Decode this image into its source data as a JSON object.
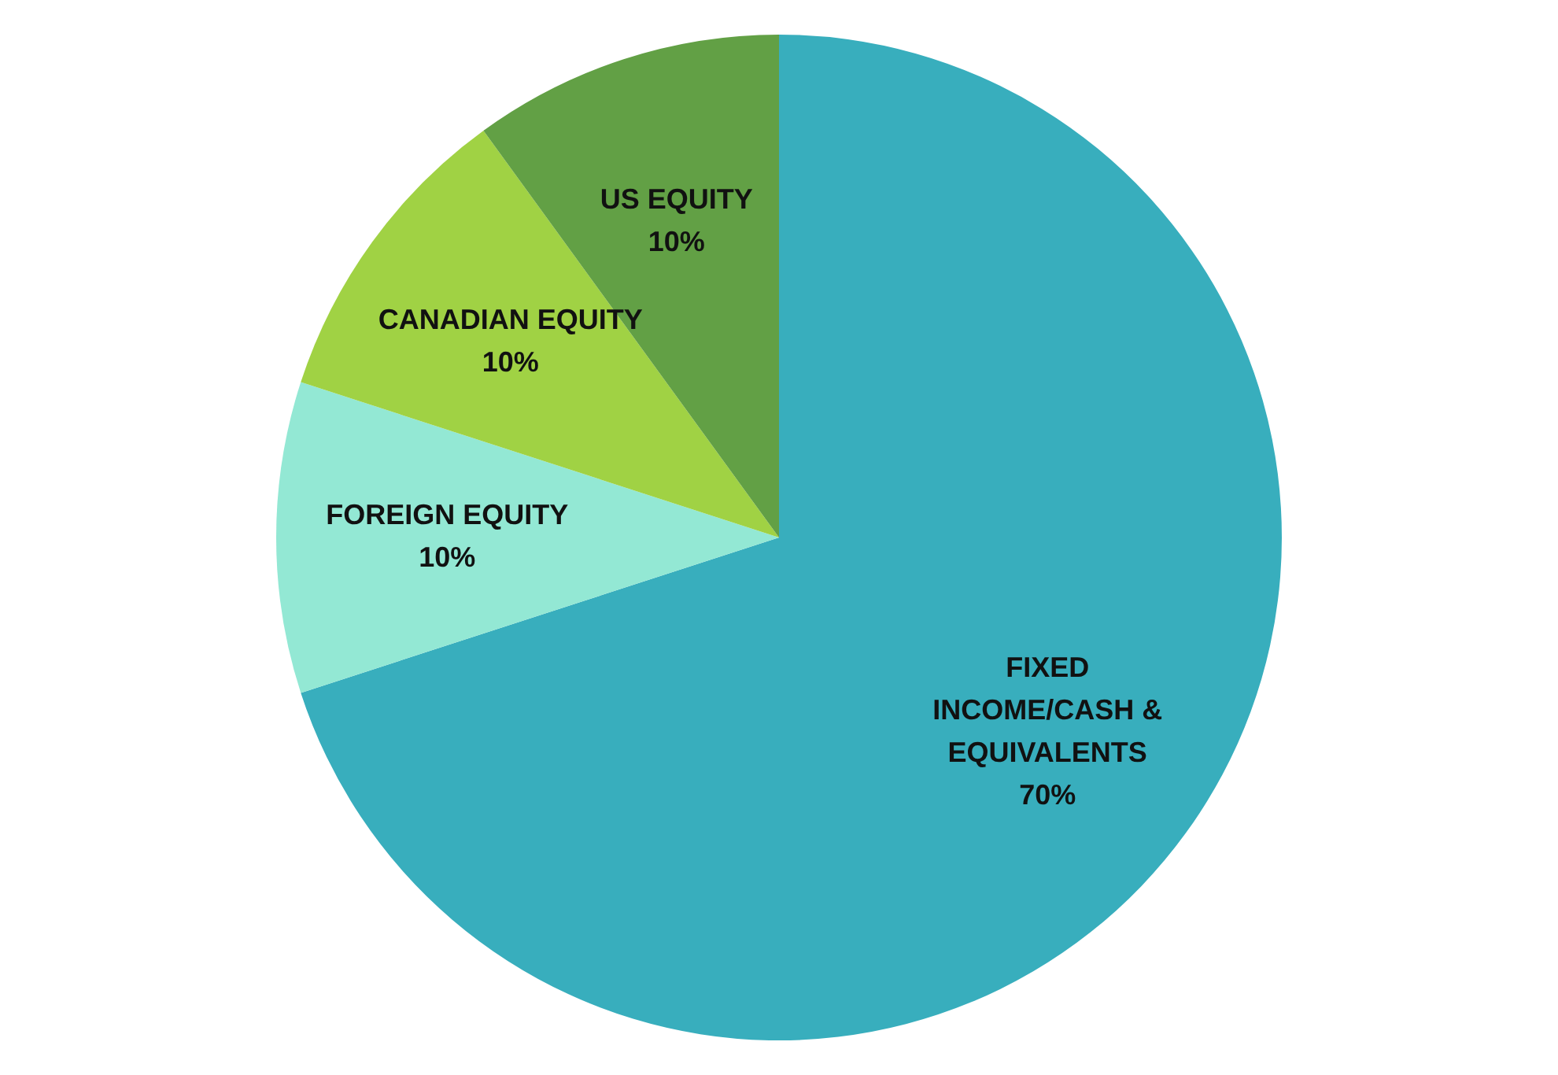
{
  "chart_data": {
    "type": "pie",
    "categories": [
      "FIXED INCOME/CASH & EQUIVALENTS",
      "FOREIGN EQUITY",
      "CANADIAN EQUITY",
      "US EQUITY"
    ],
    "values": [
      70,
      10,
      10,
      10
    ],
    "colors": [
      "#38aebd",
      "#93e8d4",
      "#a0d244",
      "#62a045"
    ],
    "value_labels": [
      "70%",
      "10%",
      "10%",
      "10%"
    ],
    "legend": false
  }
}
